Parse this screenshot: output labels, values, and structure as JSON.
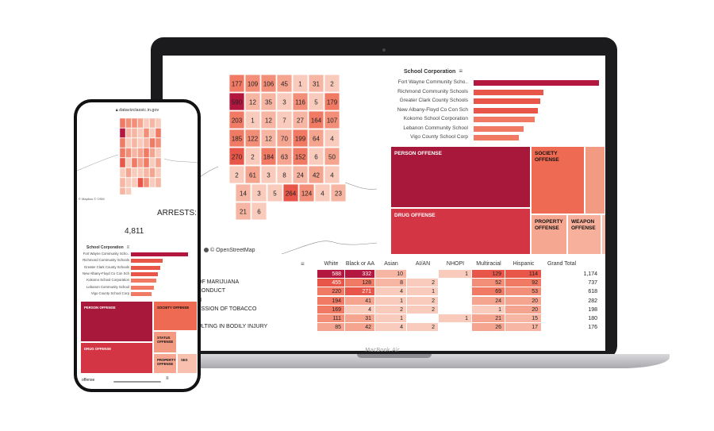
{
  "laptop": {
    "brand_label": "MacBook Air",
    "map": {
      "attribution": "© OpenStreetMap",
      "county_labels": [
        {
          "t": "177"
        },
        {
          "t": "109"
        },
        {
          "t": "106"
        },
        {
          "t": "45"
        },
        {
          "t": "1"
        },
        {
          "t": "31"
        },
        {
          "t": "2"
        },
        {
          "t": "590"
        },
        {
          "t": "12"
        },
        {
          "t": "35"
        },
        {
          "t": "3"
        },
        {
          "t": "116"
        },
        {
          "t": "5"
        },
        {
          "t": "179"
        },
        {
          "t": "203"
        },
        {
          "t": "1"
        },
        {
          "t": "12"
        },
        {
          "t": "7"
        },
        {
          "t": "27"
        },
        {
          "t": "164"
        },
        {
          "t": "107"
        },
        {
          "t": "185"
        },
        {
          "t": "122"
        },
        {
          "t": "12"
        },
        {
          "t": "70"
        },
        {
          "t": "199"
        },
        {
          "t": "64"
        },
        {
          "t": "4"
        },
        {
          "t": "270"
        },
        {
          "t": "2"
        },
        {
          "t": "184"
        },
        {
          "t": "63"
        },
        {
          "t": "152"
        },
        {
          "t": "6"
        },
        {
          "t": "50"
        },
        {
          "t": "2"
        },
        {
          "t": "61"
        },
        {
          "t": "3"
        },
        {
          "t": "8"
        },
        {
          "t": "24"
        },
        {
          "t": "42"
        },
        {
          "t": "4"
        },
        {
          "t": "14"
        },
        {
          "t": "3"
        },
        {
          "t": "5"
        },
        {
          "t": "264"
        },
        {
          "t": "124"
        },
        {
          "t": "4"
        },
        {
          "t": "23"
        },
        {
          "t": "21"
        },
        {
          "t": "6"
        }
      ]
    },
    "bars": {
      "title": "School Corporation",
      "items": [
        {
          "label": "Fort Wayne Community Scho..",
          "value": 100
        },
        {
          "label": "Richmond Community Schools",
          "value": 56
        },
        {
          "label": "Greater Clark County Schools",
          "value": 53
        },
        {
          "label": "New Albany-Floyd Co Con Sch",
          "value": 51
        },
        {
          "label": "Kokomo School Corporation",
          "value": 49
        },
        {
          "label": "Lebanon Community School",
          "value": 40
        },
        {
          "label": "Vigo County School Corp",
          "value": 36
        }
      ]
    },
    "treemap": [
      {
        "label": "PERSON OFFENSE",
        "color": "#a8183b"
      },
      {
        "label": "SOCIETY OFFENSE",
        "color": "#ee6a52"
      },
      {
        "label": "",
        "color": "#f39a82"
      },
      {
        "label": "DRUG OFFENSE",
        "color": "#d33545"
      },
      {
        "label": "PROPERTY OFFENSE",
        "color": "#f6a791"
      },
      {
        "label": "WEAPON OFFENSE",
        "color": "#f7b09c"
      },
      {
        "label": "",
        "color": "#f8c0ae"
      }
    ],
    "table": {
      "columns": [
        "White",
        "Black or AA",
        "Asian",
        "AI/AN",
        "NHOPI",
        "Multiracial",
        "Hispanic",
        "Grand Total"
      ],
      "rows": [
        {
          "label": "",
          "values": [
            "588",
            "332",
            "10",
            "",
            "1",
            "129",
            "114"
          ],
          "total": "1,174"
        },
        {
          "label": "OF MARIJUANA",
          "values": [
            "455",
            "128",
            "8",
            "2",
            "",
            "52",
            "92"
          ],
          "total": "737"
        },
        {
          "label": "CONDUCT",
          "values": [
            "220",
            "271",
            "4",
            "1",
            "",
            "69",
            "53"
          ],
          "total": "618"
        },
        {
          "label": "N",
          "values": [
            "194",
            "41",
            "1",
            "2",
            "",
            "24",
            "20"
          ],
          "total": "282"
        },
        {
          "label": "ESSION OF TOBACCO",
          "values": [
            "169",
            "4",
            "2",
            "2",
            "",
            "1",
            "20"
          ],
          "total": "198"
        },
        {
          "label": "",
          "values": [
            "111",
            "31",
            "1",
            "",
            "1",
            "21",
            "15"
          ],
          "total": "180"
        },
        {
          "label": "ULTING IN BODILY INJURY",
          "values": [
            "85",
            "42",
            "4",
            "2",
            "",
            "26",
            "17"
          ],
          "total": "176"
        }
      ]
    }
  },
  "phone": {
    "url": "datavizclassic.in.gov",
    "map_attribution": "© Mapbox © OSM",
    "arrests_label": "ARRESTS:",
    "arrests_value": "4,811",
    "bars": {
      "title": "School Corporation",
      "items": [
        {
          "label": "Fort Wayne Community Scho..",
          "value": 100
        },
        {
          "label": "Richmond Community Schools",
          "value": 55
        },
        {
          "label": "Greater Clark County Schools",
          "value": 51
        },
        {
          "label": "New Albany-Floyd Co Con Sch",
          "value": 47
        },
        {
          "label": "Kokomo School Corporation",
          "value": 45
        },
        {
          "label": "Lebanon Community School",
          "value": 40
        },
        {
          "label": "Vigo County School Corp",
          "value": 36
        }
      ]
    },
    "treemap": [
      {
        "label": "PERSON OFFENSE",
        "color": "#a8183b"
      },
      {
        "label": "SOCIETY OFFENSE",
        "color": "#ee6a52"
      },
      {
        "label": "STATUS OFFENSE",
        "color": "#f39a82"
      },
      {
        "label": "DRUG OFFENSE",
        "color": "#d33545"
      },
      {
        "label": "PROPERTY OFFENSE",
        "color": "#f6a791"
      },
      {
        "label": "SEX",
        "color": "#f8c0ae"
      }
    ],
    "bottom_label": "offense"
  }
}
